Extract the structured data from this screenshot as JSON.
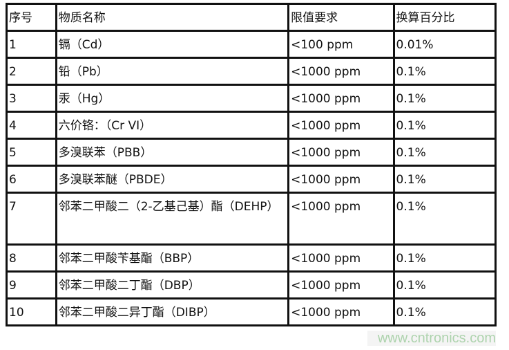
{
  "headers": [
    "序号",
    "物质名称",
    "限值要求",
    "换算百分比"
  ],
  "rows": [
    [
      "1",
      "镉（Cd）",
      "<100 ppm",
      "0.01%"
    ],
    [
      "2",
      "铅（Pb）",
      "<1000 ppm",
      "0.1%"
    ],
    [
      "3",
      "汞（Hg）",
      "<1000 ppm",
      "0.1%"
    ],
    [
      "4",
      "六价铬：（Cr VI）",
      "<1000 ppm",
      "0.1%"
    ],
    [
      "5",
      "多溴联苯（PBB）",
      "<1000 ppm",
      "0.1%"
    ],
    [
      "6",
      "多溴联苯醚（PBDE）",
      "<1000 ppm",
      "0.1%"
    ],
    [
      "7",
      "邻苯二甲酸二（2-乙基己基）酯（DEHP）",
      "<1000 ppm",
      "0.1%"
    ],
    [
      "8",
      "邻苯二甲酸苄基酯（BBP）",
      "<1000 ppm",
      "0.1%"
    ],
    [
      "9",
      "邻苯二甲酸二丁酯（DBP）",
      "<1000 ppm",
      "0.1%"
    ],
    [
      "10",
      "邻苯二甲酸二异丁酯（DIBP）",
      "<1000 ppm",
      "0.1%"
    ]
  ],
  "watermark": "www.cntronics.com"
}
